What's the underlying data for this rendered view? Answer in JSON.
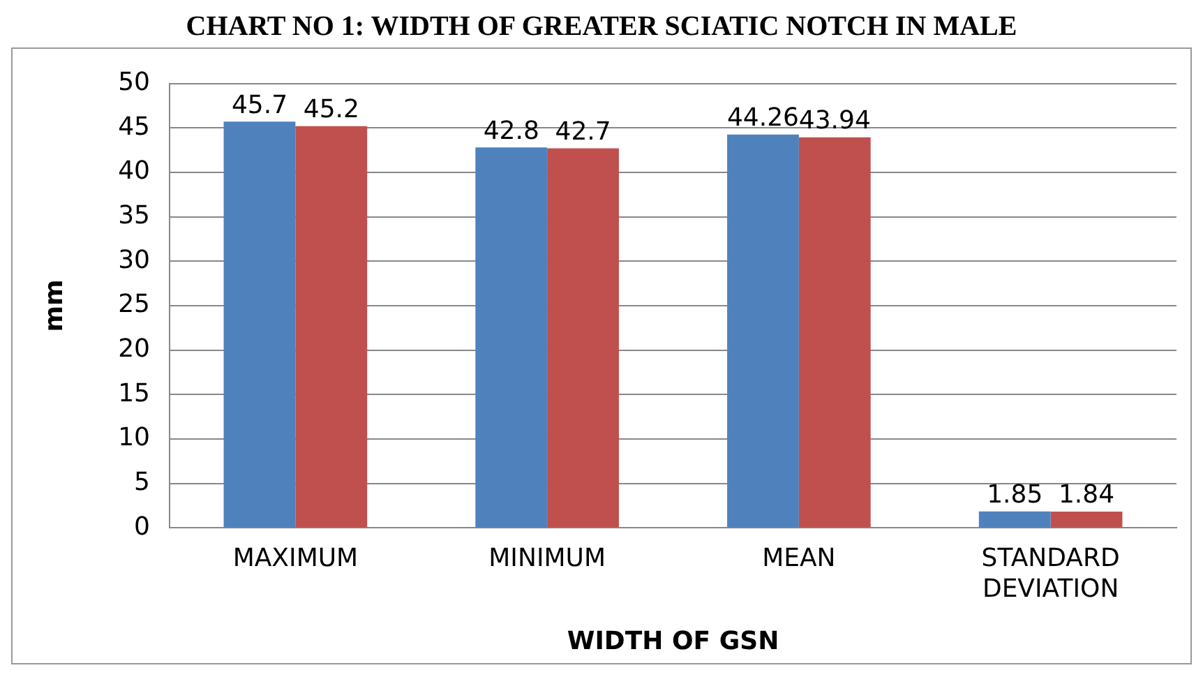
{
  "chart_data": {
    "type": "bar",
    "title": "CHART NO 1: WIDTH OF GREATER SCIATIC NOTCH IN MALE",
    "xlabel": "WIDTH OF GSN",
    "ylabel": "mm",
    "categories": [
      "MAXIMUM",
      "MINIMUM",
      "MEAN",
      "STANDARD DEVIATION"
    ],
    "series": [
      {
        "color": "#4f81bd",
        "values": [
          45.7,
          42.8,
          44.26,
          1.85
        ]
      },
      {
        "color": "#c0504d",
        "values": [
          45.2,
          42.7,
          43.94,
          1.84
        ]
      }
    ],
    "ylim": [
      0,
      50
    ],
    "yticks": [
      0,
      5,
      10,
      15,
      20,
      25,
      30,
      35,
      40,
      45,
      50
    ],
    "grid": "y",
    "data_labels": true
  }
}
